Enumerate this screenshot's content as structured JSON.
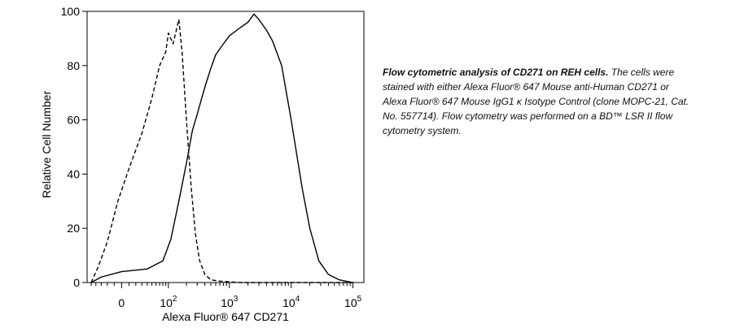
{
  "chart_data": {
    "type": "line",
    "title": "",
    "xlabel": "Alexa Fluor® 647 CD271",
    "ylabel": "Relative Cell Number",
    "ylim": [
      0,
      100
    ],
    "yticks": [
      "0",
      "20",
      "40",
      "60",
      "80",
      "100"
    ],
    "xscale": "biexponential",
    "xticks": [
      {
        "base": "0",
        "exp": ""
      },
      {
        "base": "10",
        "exp": "2"
      },
      {
        "base": "10",
        "exp": "3"
      },
      {
        "base": "10",
        "exp": "4"
      },
      {
        "base": "10",
        "exp": "5"
      }
    ],
    "grid": false,
    "legend": "none",
    "series": [
      {
        "line_style": "dashed",
        "color": "#000000",
        "points": [
          [
            -50,
            0
          ],
          [
            -35,
            6
          ],
          [
            -20,
            15
          ],
          [
            -5,
            30
          ],
          [
            10,
            42
          ],
          [
            30,
            55
          ],
          [
            50,
            68
          ],
          [
            70,
            80
          ],
          [
            90,
            85
          ],
          [
            100,
            92
          ],
          [
            120,
            88
          ],
          [
            150,
            97
          ],
          [
            170,
            85
          ],
          [
            200,
            60
          ],
          [
            240,
            35
          ],
          [
            280,
            18
          ],
          [
            330,
            8
          ],
          [
            400,
            3
          ],
          [
            500,
            1
          ],
          [
            700,
            0.5
          ],
          [
            1500,
            0
          ],
          [
            100000,
            0
          ]
        ]
      },
      {
        "line_style": "solid",
        "color": "#000000",
        "points": [
          [
            -50,
            0
          ],
          [
            -30,
            2
          ],
          [
            0,
            4
          ],
          [
            40,
            5
          ],
          [
            80,
            8
          ],
          [
            110,
            16
          ],
          [
            150,
            30
          ],
          [
            200,
            44
          ],
          [
            250,
            56
          ],
          [
            300,
            62
          ],
          [
            400,
            72
          ],
          [
            500,
            79
          ],
          [
            600,
            84
          ],
          [
            800,
            88
          ],
          [
            1000,
            91
          ],
          [
            1500,
            94
          ],
          [
            2000,
            96
          ],
          [
            2500,
            99
          ],
          [
            3000,
            97
          ],
          [
            4000,
            93
          ],
          [
            5000,
            89
          ],
          [
            7000,
            80
          ],
          [
            10000,
            60
          ],
          [
            15000,
            35
          ],
          [
            20000,
            20
          ],
          [
            28000,
            8
          ],
          [
            40000,
            3
          ],
          [
            60000,
            1
          ],
          [
            100000,
            0
          ]
        ]
      }
    ]
  },
  "caption": {
    "bold": "Flow cytometric analysis of CD271 on REH cells.",
    "text": " The cells were stained with either Alexa Fluor® 647 Mouse anti-Human CD271 or Alexa Fluor® 647 Mouse IgG1 κ Isotype Control (clone MOPC-21, Cat. No. 557714). Flow cytometry was performed on a BD™ LSR II flow cytometry system."
  }
}
